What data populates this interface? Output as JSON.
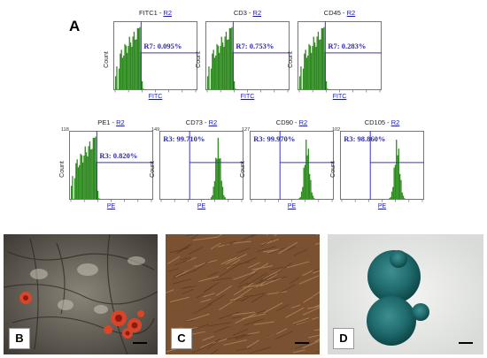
{
  "panel_a": {
    "letter": "A",
    "rows": [
      [
        {
          "title": "FITC1 - ",
          "gate": "R2",
          "xlabel": "FITC",
          "ylabel": "Count",
          "marker": "R7: 0.095%",
          "peak": 0.26,
          "color": "#2e8b1f",
          "ymax": ""
        },
        {
          "title": "CD3 - ",
          "gate": "R2",
          "xlabel": "FITC",
          "ylabel": "Count",
          "marker": "R7: 0.753%",
          "peak": 0.26,
          "color": "#2e8b1f",
          "ymax": ""
        },
        {
          "title": "CD45 - ",
          "gate": "R2",
          "xlabel": "FITC",
          "ylabel": "Count",
          "marker": "R7: 0.283%",
          "peak": 0.26,
          "color": "#2e8b1f",
          "ymax": ""
        }
      ],
      [
        {
          "title": "PE1 - ",
          "gate": "R2",
          "xlabel": "PE",
          "ylabel": "Count",
          "marker": "R3: 0.820%",
          "peak": 0.26,
          "color": "#2e8b1f",
          "ymax": "118"
        },
        {
          "title": "CD73 - ",
          "gate": "R2",
          "xlabel": "PE",
          "ylabel": "Count",
          "marker": "R3: 99.710%",
          "peak": 0.7,
          "color": "#2e8b1f",
          "ymax": "149"
        },
        {
          "title": "CD90 - ",
          "gate": "R2",
          "xlabel": "PE",
          "ylabel": "Count",
          "marker": "R3: 99.970%",
          "peak": 0.68,
          "color": "#2e8b1f",
          "ymax": "127"
        },
        {
          "title": "CD105 - ",
          "gate": "R2",
          "xlabel": "PE",
          "ylabel": "Count",
          "marker": "R3: 98.860%",
          "peak": 0.68,
          "color": "#2e8b1f",
          "ymax": "102"
        }
      ]
    ]
  },
  "panel_b": {
    "letter": "B"
  },
  "panel_c": {
    "letter": "C"
  },
  "panel_d": {
    "letter": "D"
  }
}
